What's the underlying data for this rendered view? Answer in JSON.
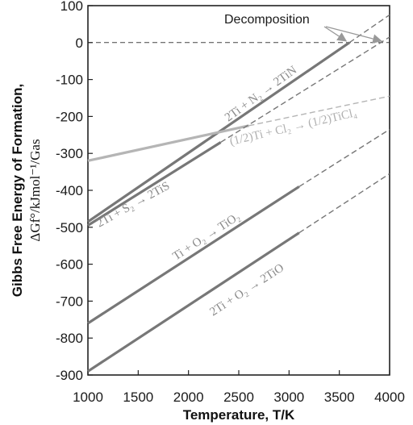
{
  "chart_data": {
    "type": "line",
    "title": "",
    "ylabel": "Gibbs Free Energy of Formation,",
    "ylabel_units": "ΔGf°/kJmol⁻¹/Gas",
    "xlabel": "Temperature, T/K",
    "xlim": [
      1000,
      4000
    ],
    "ylim": [
      -900,
      100
    ],
    "x_ticks": [
      1000,
      1500,
      2000,
      2500,
      3000,
      3500,
      4000
    ],
    "y_ticks": [
      100,
      0,
      -100,
      -200,
      -300,
      -400,
      -500,
      -600,
      -700,
      -800,
      -900
    ],
    "grid": false,
    "reference_line": {
      "y": 0,
      "style": "dashed"
    },
    "annotation": {
      "text": "Decomposition",
      "points_to_x": [
        3600,
        3950
      ]
    },
    "series": [
      {
        "name": "2Ti + N₂ → 2TiN",
        "color": "#777777",
        "solid": [
          [
            1000,
            -485
          ],
          [
            3600,
            0
          ]
        ],
        "dashed": [
          [
            3600,
            0
          ],
          [
            4000,
            75
          ]
        ]
      },
      {
        "name": "(1/2)Ti + Cl₂ → (1/2)TiCl₄",
        "color": "#b5b5b5",
        "solid": [
          [
            1000,
            -320
          ],
          [
            2600,
            -225
          ]
        ],
        "dashed": [
          [
            2600,
            -225
          ],
          [
            4000,
            -145
          ]
        ]
      },
      {
        "name": "2Ti + S₂ → 2TiS",
        "color": "#777777",
        "solid": [
          [
            1000,
            -495
          ],
          [
            2320,
            -270
          ]
        ],
        "dashed": [
          [
            2320,
            -270
          ],
          [
            4000,
            15
          ]
        ]
      },
      {
        "name": "Ti + O₂ → TiO₂",
        "color": "#777777",
        "solid": [
          [
            1000,
            -760
          ],
          [
            3100,
            -390
          ]
        ],
        "dashed": [
          [
            3100,
            -390
          ],
          [
            4000,
            -235
          ]
        ]
      },
      {
        "name": "2Ti + O₂ → 2TiO",
        "color": "#777777",
        "solid": [
          [
            1000,
            -890
          ],
          [
            3100,
            -515
          ]
        ],
        "dashed": [
          [
            3100,
            -515
          ],
          [
            4000,
            -355
          ]
        ]
      }
    ]
  }
}
